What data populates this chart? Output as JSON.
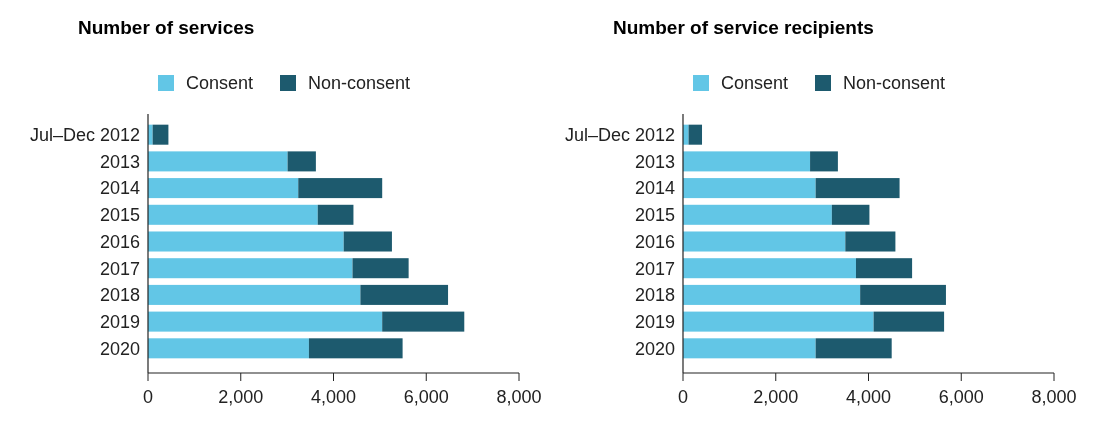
{
  "chart_data": [
    {
      "type": "bar",
      "orientation": "horizontal",
      "stacked": true,
      "title": "Number of services",
      "categories": [
        "Jul–Dec 2012",
        "2013",
        "2014",
        "2015",
        "2016",
        "2017",
        "2018",
        "2019",
        "2020"
      ],
      "series": [
        {
          "name": "Consent",
          "color": "#62c6e6",
          "values": [
            100,
            3010,
            3240,
            3660,
            4220,
            4410,
            4580,
            5050,
            3470
          ]
        },
        {
          "name": "Non-consent",
          "color": "#1d5a6e",
          "values": [
            340,
            610,
            1810,
            770,
            1040,
            1210,
            1890,
            1770,
            2020
          ]
        }
      ],
      "xlim": [
        0,
        8000
      ],
      "xticks": [
        0,
        {
          "value": 2000,
          "label": "2,000"
        },
        {
          "value": 4000,
          "label": "4,000"
        },
        {
          "value": 6000,
          "label": "6,000"
        },
        {
          "value": 8000,
          "label": "8,000"
        }
      ],
      "legend": "top",
      "grid": false
    },
    {
      "type": "bar",
      "orientation": "horizontal",
      "stacked": true,
      "title": "Number of service recipients",
      "categories": [
        "Jul–Dec 2012",
        "2013",
        "2014",
        "2015",
        "2016",
        "2017",
        "2018",
        "2019",
        "2020"
      ],
      "series": [
        {
          "name": "Consent",
          "color": "#62c6e6",
          "values": [
            120,
            2740,
            2860,
            3210,
            3500,
            3730,
            3820,
            4110,
            2860
          ]
        },
        {
          "name": "Non-consent",
          "color": "#1d5a6e",
          "values": [
            290,
            600,
            1810,
            810,
            1080,
            1210,
            1850,
            1520,
            1640
          ]
        }
      ],
      "xlim": [
        0,
        8000
      ],
      "xticks": [
        0,
        {
          "value": 2000,
          "label": "2,000"
        },
        {
          "value": 4000,
          "label": "4,000"
        },
        {
          "value": 6000,
          "label": "6,000"
        },
        {
          "value": 8000,
          "label": "8,000"
        }
      ],
      "legend": "top",
      "grid": false
    }
  ]
}
